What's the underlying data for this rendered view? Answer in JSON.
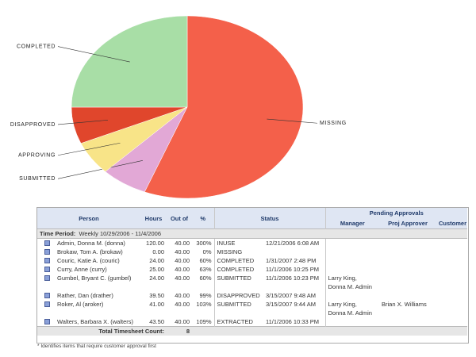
{
  "chart_data": {
    "type": "pie",
    "categories": [
      "MISSING",
      "SUBMITTED",
      "APPROVING",
      "DISAPPROVED",
      "COMPLETED"
    ],
    "values": [
      56,
      6.5,
      6,
      6.5,
      25
    ],
    "colors": [
      "#f4604a",
      "#e2a8d6",
      "#f8e488",
      "#e0462c",
      "#a8dea6"
    ]
  },
  "table": {
    "headers": {
      "person": "Person",
      "hours": "Hours",
      "out_of": "Out of",
      "pct": "%",
      "status": "Status",
      "pending": "Pending Approvals",
      "manager": "Manager",
      "proj_approver": "Proj Approver",
      "customer": "Customer"
    },
    "time_period": {
      "label": "Time Period:",
      "value": "Weekly 10/29/2006 - 11/4/2006"
    },
    "rows": [
      {
        "person": "Admin, Donna M. (donna)",
        "hours": "120.00",
        "out_of": "40.00",
        "pct": "300%",
        "status": "INUSE",
        "date": "12/21/2006 6:08 AM"
      },
      {
        "person": "Brokaw, Tom A. (brokaw)",
        "hours": "0.00",
        "out_of": "40.00",
        "pct": "0%",
        "status": "MISSING"
      },
      {
        "person": "Couric, Katie A. (couric)",
        "hours": "24.00",
        "out_of": "40.00",
        "pct": "60%",
        "status": "COMPLETED",
        "date": "1/31/2007 2:48 PM"
      },
      {
        "person": "Curry, Anne (curry)",
        "hours": "25.00",
        "out_of": "40.00",
        "pct": "63%",
        "status": "COMPLETED",
        "date": "11/1/2006 10:25 PM"
      },
      {
        "person": "Gumbel, Bryant C. (gumbel)",
        "hours": "24.00",
        "out_of": "40.00",
        "pct": "60%",
        "status": "SUBMITTED",
        "date": "11/1/2006 10:23 PM",
        "manager": [
          "Larry King,",
          "Donna M. Admin"
        ]
      },
      {
        "person": "Rather, Dan (drather)",
        "hours": "39.50",
        "out_of": "40.00",
        "pct": "99%",
        "status": "DISAPPROVED",
        "date": "3/15/2007 9:48 AM"
      },
      {
        "person": "Roker, Al (aroker)",
        "hours": "41.00",
        "out_of": "40.00",
        "pct": "103%",
        "status": "SUBMITTED",
        "date": "3/15/2007 9:44 AM",
        "manager": [
          "Larry King,",
          "Donna M. Admin"
        ],
        "proj_approver": "Brian X. Williams"
      },
      {
        "person": "Walters, Barbara X. (walters)",
        "hours": "43.50",
        "out_of": "40.00",
        "pct": "109%",
        "status": "EXTRACTED",
        "date": "11/1/2006 10:33 PM"
      }
    ],
    "total": {
      "label": "Total Timesheet Count:",
      "value": "8"
    },
    "footnote": "* Identifies items that require customer approval first"
  }
}
